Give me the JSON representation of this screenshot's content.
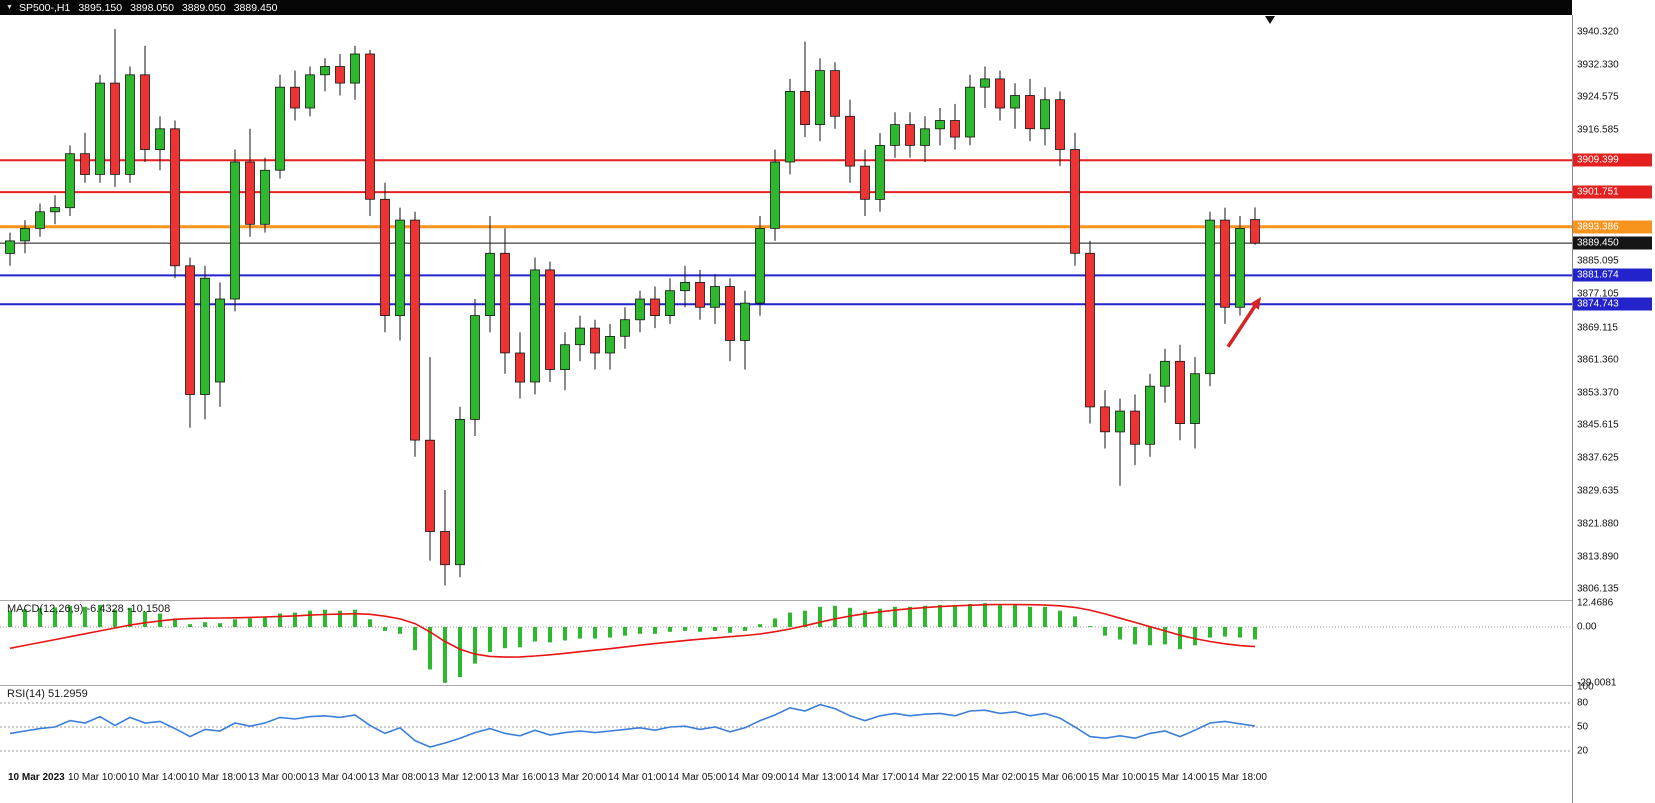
{
  "header": {
    "dropdown_icon": "▼",
    "symbol_period": "SP500-,H1",
    "open": "3895.150",
    "high": "3898.050",
    "low": "3889.050",
    "close": "3889.450"
  },
  "indicators": {
    "macd_label": "MACD(12,26,9)",
    "macd_main_value": "-6.4328",
    "macd_signal_value": "-10.1508",
    "rsi_label": "RSI(14)",
    "rsi_value": "51.2959"
  },
  "colors": {
    "up": "#2eb82e",
    "down": "#ee3333",
    "wick": "#151515",
    "macd_histogram": "#2eb82e",
    "macd_signal": "#e81414",
    "rsi_line": "#3d7edb",
    "level_dashed": "#9a9a9a",
    "axis_text": "#111111",
    "header_bg": "#060606",
    "arrow": "#d42424"
  },
  "chart_data": [
    {
      "type": "candlestick",
      "title": "SP500- H1",
      "ylim": [
        3803.5,
        3944.4
      ],
      "price_axis_ticks": [
        "3940.320",
        "3932.330",
        "3924.575",
        "3916.585",
        "3885.095",
        "3877.105",
        "3869.115",
        "3861.360",
        "3853.370",
        "3845.615",
        "3837.625",
        "3829.635",
        "3821.880",
        "3813.890",
        "3806.135"
      ],
      "level_lines": [
        {
          "text": "3909.399",
          "value": 3909.399,
          "color": "#e41f1f",
          "lw": 2
        },
        {
          "text": "3901.751",
          "value": 3901.751,
          "color": "#e41f1f",
          "lw": 2
        },
        {
          "text": "3893.386",
          "value": 3893.386,
          "color": "#f7941d",
          "lw": 3
        },
        {
          "text": "3889.450",
          "value": 3889.45,
          "color": "#151515",
          "lw": 1
        },
        {
          "text": "3881.674",
          "value": 3881.674,
          "color": "#2323cc",
          "lw": 2
        },
        {
          "text": "3874.743",
          "value": 3874.743,
          "color": "#2323cc",
          "lw": 2
        }
      ],
      "time_labels": [
        {
          "text": "10 Mar 2023",
          "bar": 0,
          "bold": true
        },
        {
          "text": "10 Mar 10:00",
          "bar": 4,
          "bold": false
        },
        {
          "text": "10 Mar 14:00",
          "bar": 8,
          "bold": false
        },
        {
          "text": "10 Mar 18:00",
          "bar": 12,
          "bold": false
        },
        {
          "text": "13 Mar 00:00",
          "bar": 16,
          "bold": false
        },
        {
          "text": "13 Mar 04:00",
          "bar": 20,
          "bold": false
        },
        {
          "text": "13 Mar 08:00",
          "bar": 24,
          "bold": false
        },
        {
          "text": "13 Mar 12:00",
          "bar": 28,
          "bold": false
        },
        {
          "text": "13 Mar 16:00",
          "bar": 32,
          "bold": false
        },
        {
          "text": "13 Mar 20:00",
          "bar": 36,
          "bold": false
        },
        {
          "text": "14 Mar 01:00",
          "bar": 40,
          "bold": false
        },
        {
          "text": "14 Mar 05:00",
          "bar": 44,
          "bold": false
        },
        {
          "text": "14 Mar 09:00",
          "bar": 48,
          "bold": false
        },
        {
          "text": "14 Mar 13:00",
          "bar": 52,
          "bold": false
        },
        {
          "text": "14 Mar 17:00",
          "bar": 56,
          "bold": false
        },
        {
          "text": "14 Mar 22:00",
          "bar": 60,
          "bold": false
        },
        {
          "text": "15 Mar 02:00",
          "bar": 64,
          "bold": false
        },
        {
          "text": "15 Mar 06:00",
          "bar": 68,
          "bold": false
        },
        {
          "text": "15 Mar 10:00",
          "bar": 72,
          "bold": false
        },
        {
          "text": "15 Mar 14:00",
          "bar": 76,
          "bold": false
        },
        {
          "text": "15 Mar 18:00",
          "bar": 80,
          "bold": false
        }
      ],
      "candles": [
        [
          3887,
          3892,
          3884,
          3890
        ],
        [
          3890,
          3895,
          3887,
          3893
        ],
        [
          3893,
          3899,
          3891,
          3897
        ],
        [
          3897,
          3901,
          3894,
          3898
        ],
        [
          3898,
          3913,
          3896,
          3911
        ],
        [
          3911,
          3916,
          3904,
          3906
        ],
        [
          3906,
          3930,
          3904,
          3928
        ],
        [
          3928,
          3941,
          3903,
          3906
        ],
        [
          3906,
          3932,
          3904,
          3930
        ],
        [
          3930,
          3937,
          3909,
          3912
        ],
        [
          3912,
          3920,
          3907,
          3917
        ],
        [
          3917,
          3919,
          3881,
          3884
        ],
        [
          3884,
          3886,
          3845,
          3853
        ],
        [
          3853,
          3884,
          3847,
          3881
        ],
        [
          3856,
          3880,
          3850,
          3876
        ],
        [
          3876,
          3912,
          3873,
          3909
        ],
        [
          3909,
          3917,
          3891,
          3894
        ],
        [
          3894,
          3910,
          3892,
          3907
        ],
        [
          3907,
          3930,
          3905,
          3927
        ],
        [
          3927,
          3931,
          3919,
          3922
        ],
        [
          3922,
          3932,
          3920,
          3930
        ],
        [
          3930,
          3934,
          3926,
          3932
        ],
        [
          3932,
          3935,
          3925,
          3928
        ],
        [
          3928,
          3937,
          3924,
          3935
        ],
        [
          3935,
          3936,
          3896,
          3900
        ],
        [
          3900,
          3904,
          3868,
          3872
        ],
        [
          3872,
          3898,
          3866,
          3895
        ],
        [
          3895,
          3897,
          3838,
          3842
        ],
        [
          3842,
          3862,
          3813,
          3820
        ],
        [
          3820,
          3830,
          3807,
          3812
        ],
        [
          3812,
          3850,
          3809,
          3847
        ],
        [
          3847,
          3876,
          3843,
          3872
        ],
        [
          3872,
          3896,
          3868,
          3887
        ],
        [
          3887,
          3893,
          3858,
          3863
        ],
        [
          3863,
          3868,
          3852,
          3856
        ],
        [
          3856,
          3886,
          3853,
          3883
        ],
        [
          3883,
          3885,
          3856,
          3859
        ],
        [
          3859,
          3868,
          3854,
          3865
        ],
        [
          3865,
          3872,
          3861,
          3869
        ],
        [
          3869,
          3871,
          3859,
          3863
        ],
        [
          3863,
          3870,
          3859,
          3867
        ],
        [
          3867,
          3874,
          3864,
          3871
        ],
        [
          3871,
          3878,
          3868,
          3876
        ],
        [
          3876,
          3879,
          3869,
          3872
        ],
        [
          3872,
          3881,
          3870,
          3878
        ],
        [
          3878,
          3884,
          3874,
          3880
        ],
        [
          3880,
          3883,
          3871,
          3874
        ],
        [
          3874,
          3882,
          3870,
          3879
        ],
        [
          3879,
          3881,
          3861,
          3866
        ],
        [
          3866,
          3878,
          3859,
          3875
        ],
        [
          3875,
          3896,
          3872,
          3893
        ],
        [
          3893,
          3912,
          3890,
          3909
        ],
        [
          3909,
          3929,
          3906,
          3926
        ],
        [
          3926,
          3938,
          3915,
          3918
        ],
        [
          3918,
          3934,
          3914,
          3931
        ],
        [
          3931,
          3933,
          3917,
          3920
        ],
        [
          3920,
          3924,
          3904,
          3908
        ],
        [
          3908,
          3912,
          3896,
          3900
        ],
        [
          3900,
          3916,
          3897,
          3913
        ],
        [
          3913,
          3921,
          3910,
          3918
        ],
        [
          3918,
          3921,
          3910,
          3913
        ],
        [
          3913,
          3920,
          3909,
          3917
        ],
        [
          3917,
          3922,
          3913,
          3919
        ],
        [
          3919,
          3923,
          3912,
          3915
        ],
        [
          3915,
          3930,
          3913,
          3927
        ],
        [
          3927,
          3932,
          3922,
          3929
        ],
        [
          3929,
          3931,
          3919,
          3922
        ],
        [
          3922,
          3928,
          3917,
          3925
        ],
        [
          3925,
          3929,
          3914,
          3917
        ],
        [
          3917,
          3927,
          3913,
          3924
        ],
        [
          3924,
          3926,
          3908,
          3912
        ],
        [
          3912,
          3916,
          3884,
          3887
        ],
        [
          3887,
          3890,
          3846,
          3850
        ],
        [
          3850,
          3854,
          3840,
          3844
        ],
        [
          3844,
          3852,
          3831,
          3849
        ],
        [
          3849,
          3853,
          3836,
          3841
        ],
        [
          3841,
          3858,
          3838,
          3855
        ],
        [
          3855,
          3864,
          3851,
          3861
        ],
        [
          3861,
          3865,
          3842,
          3846
        ],
        [
          3846,
          3862,
          3840,
          3858
        ],
        [
          3858,
          3897,
          3855,
          3895
        ],
        [
          3895,
          3898,
          3870,
          3874
        ],
        [
          3874,
          3896,
          3872,
          3893
        ],
        [
          3895.15,
          3898.05,
          3889.05,
          3889.45
        ]
      ],
      "annotations": [
        {
          "type": "arrow",
          "from_bar": 81.2,
          "from_price": 3864.5,
          "to_bar": 83.4,
          "to_price": 3876.5,
          "color": "#d42424"
        }
      ],
      "shift_marker_bar": 84
    },
    {
      "type": "bar",
      "title": "MACD(12,26,9)",
      "current_main": -6.4328,
      "current_signal": -10.1508,
      "ylim": [
        -29.0081,
        12.4686
      ],
      "axis_ticks": [
        {
          "text": "12.4686",
          "value": 12.4686
        },
        {
          "text": "0.00",
          "value": 0
        },
        {
          "text": "-29.0081",
          "value": -29.0081
        }
      ],
      "histogram": [
        8.5,
        9.2,
        9.8,
        10.2,
        11.0,
        10.5,
        11.5,
        9.0,
        10.0,
        8.0,
        7.0,
        4.5,
        1.5,
        2.5,
        2.0,
        4.0,
        4.5,
        5.5,
        7.0,
        7.5,
        8.5,
        9.0,
        8.5,
        9.0,
        4.0,
        -2.0,
        -3.5,
        -12.0,
        -22.0,
        -29.0,
        -26.0,
        -19.0,
        -13.0,
        -11.0,
        -10.5,
        -7.5,
        -8.0,
        -7.0,
        -6.0,
        -6.0,
        -5.5,
        -4.5,
        -3.5,
        -3.5,
        -2.5,
        -2.0,
        -2.5,
        -2.0,
        -3.0,
        -2.0,
        1.5,
        4.5,
        7.5,
        8.5,
        10.5,
        11.0,
        10.0,
        8.5,
        9.5,
        10.5,
        10.5,
        11.0,
        11.5,
        11.0,
        12.0,
        12.4,
        11.5,
        11.5,
        10.5,
        10.5,
        8.5,
        5.5,
        0.5,
        -4.5,
        -6.5,
        -9.0,
        -9.5,
        -9.0,
        -11.5,
        -9.5,
        -5.5,
        -5.0,
        -5.5,
        -6.4328
      ],
      "signal": [
        -11.0,
        -9.5,
        -8.0,
        -6.5,
        -5.0,
        -3.5,
        -2.0,
        -0.5,
        1.0,
        2.2,
        3.2,
        4.0,
        4.4,
        4.6,
        4.7,
        4.8,
        5.0,
        5.2,
        5.5,
        5.8,
        6.2,
        6.5,
        6.7,
        6.9,
        6.6,
        5.6,
        4.2,
        1.8,
        -2.5,
        -7.5,
        -11.5,
        -14.0,
        -15.2,
        -15.6,
        -15.5,
        -15.0,
        -14.4,
        -13.6,
        -12.8,
        -12.0,
        -11.2,
        -10.3,
        -9.4,
        -8.6,
        -7.8,
        -7.0,
        -6.3,
        -5.6,
        -5.0,
        -4.4,
        -3.6,
        -2.4,
        -1.0,
        0.7,
        2.5,
        4.2,
        5.7,
        6.9,
        7.9,
        8.8,
        9.5,
        10.1,
        10.6,
        11.0,
        11.3,
        11.6,
        11.7,
        11.7,
        11.6,
        11.4,
        11.0,
        10.2,
        8.8,
        6.8,
        4.6,
        2.4,
        0.2,
        -2.0,
        -4.2,
        -6.0,
        -7.5,
        -8.7,
        -9.6,
        -10.1508
      ]
    },
    {
      "type": "line",
      "title": "RSI(14)",
      "current_value": 51.2959,
      "ylim": [
        0,
        100
      ],
      "levels": [
        80,
        50,
        20
      ],
      "axis_ticks": [
        {
          "text": "100",
          "value": 100
        },
        {
          "text": "80",
          "value": 80
        },
        {
          "text": "50",
          "value": 50
        },
        {
          "text": "20",
          "value": 20
        }
      ],
      "values": [
        42,
        45,
        48,
        50,
        58,
        55,
        63,
        52,
        62,
        55,
        57,
        48,
        38,
        47,
        45,
        55,
        51,
        55,
        62,
        60,
        63,
        64,
        62,
        65,
        52,
        42,
        49,
        33,
        25,
        30,
        36,
        43,
        48,
        42,
        39,
        46,
        40,
        43,
        45,
        43,
        45,
        47,
        49,
        46,
        50,
        51,
        47,
        50,
        44,
        49,
        58,
        65,
        74,
        70,
        78,
        73,
        64,
        58,
        64,
        67,
        64,
        66,
        67,
        64,
        70,
        71,
        67,
        69,
        64,
        67,
        61,
        50,
        38,
        36,
        39,
        36,
        42,
        45,
        38,
        46,
        55,
        57,
        54,
        51.2959
      ]
    }
  ]
}
